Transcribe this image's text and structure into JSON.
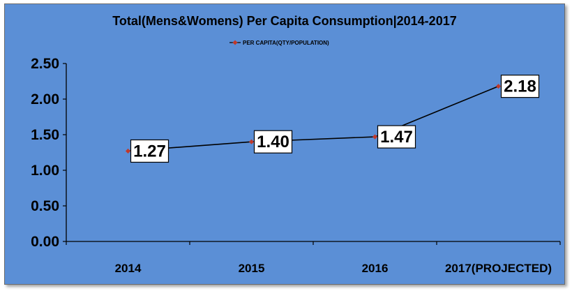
{
  "chart_data": {
    "type": "line",
    "title": "Total(Mens&Womens) Per Capita Consumption|2014-2017",
    "xlabel": "",
    "ylabel": "",
    "categories": [
      "2014",
      "2015",
      "2016",
      "2017(PROJECTED)"
    ],
    "series": [
      {
        "name": "PER CAPITA(QTY/POPULATION)",
        "values": [
          1.27,
          1.4,
          1.47,
          2.18
        ]
      }
    ],
    "data_labels": [
      "1.27",
      "1.40",
      "1.47",
      "2.18"
    ],
    "ylim": [
      0,
      2.5
    ],
    "yticks": [
      "0.00",
      "0.50",
      "1.00",
      "1.50",
      "2.00",
      "2.50"
    ],
    "grid": false,
    "legend_position": "top",
    "colors": {
      "background": "#5b8fd6",
      "line": "#000000",
      "marker": "#c0392b",
      "label_box": "#ffffff"
    }
  }
}
